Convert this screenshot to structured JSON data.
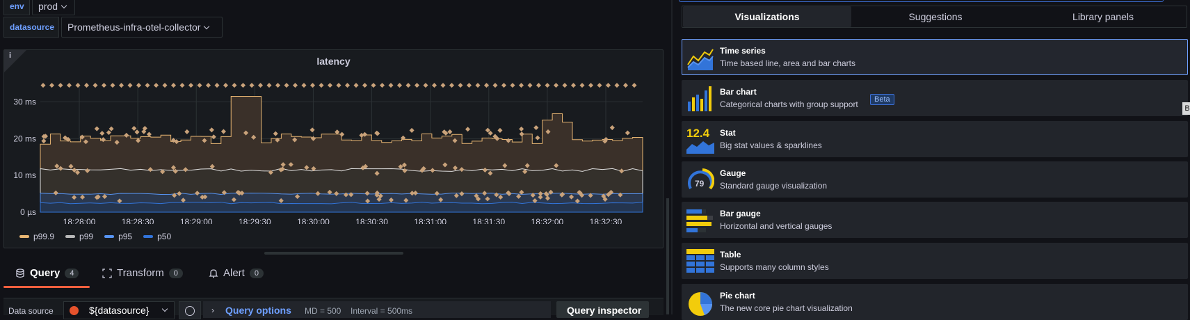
{
  "variables": {
    "env": {
      "label": "env",
      "value": "prod"
    },
    "datasource": {
      "label": "datasource",
      "value": "Prometheus-infra-otel-collector"
    }
  },
  "panel": {
    "title": "latency",
    "info_glyph": "i"
  },
  "chart_data": {
    "type": "line",
    "title": "latency",
    "x_ticks": [
      "18:28:00",
      "18:28:30",
      "18:29:00",
      "18:29:30",
      "18:30:00",
      "18:30:30",
      "18:31:00",
      "18:31:30",
      "18:32:00",
      "18:32:30"
    ],
    "y_ticks": [
      "0 µs",
      "10 ms",
      "20 ms",
      "30 ms"
    ],
    "ylim": [
      0,
      35
    ],
    "legend_position": "bottom-left",
    "series": [
      {
        "name": "p99.9",
        "color": "#e8b673",
        "approx_level_ms": 20,
        "scatter_level_ms": 34.5
      },
      {
        "name": "p99",
        "color": "#b9b9b9",
        "approx_level_ms": 11.5
      },
      {
        "name": "p95",
        "color": "#5794f2",
        "approx_level_ms": 5
      },
      {
        "name": "p50",
        "color": "#3274d9",
        "approx_level_ms": 2.5
      }
    ]
  },
  "query_tabs": [
    {
      "label": "Query",
      "count": "4"
    },
    {
      "label": "Transform",
      "count": "0"
    },
    {
      "label": "Alert",
      "count": "0"
    }
  ],
  "query_row": {
    "datasource_label": "Data source",
    "datasource_value": "${datasource}",
    "options_label": "Query options",
    "md": "MD = 500",
    "interval": "Interval = 500ms",
    "inspector": "Query inspector"
  },
  "viz_tabs": [
    {
      "label": "Visualizations"
    },
    {
      "label": "Suggestions"
    },
    {
      "label": "Library panels"
    }
  ],
  "viz_cards": [
    {
      "title": "Time series",
      "desc": "Time based line, area and bar charts",
      "icon": "time-series-icon"
    },
    {
      "title": "Bar chart",
      "desc": "Categorical charts with group support",
      "icon": "bar-chart-icon",
      "badge": "Beta"
    },
    {
      "title": "Stat",
      "desc": "Big stat values & sparklines",
      "icon": "stat-icon",
      "icon_text": "12.4"
    },
    {
      "title": "Gauge",
      "desc": "Standard gauge visualization",
      "icon": "gauge-icon",
      "icon_text": "79"
    },
    {
      "title": "Bar gauge",
      "desc": "Horizontal and vertical gauges",
      "icon": "bar-gauge-icon"
    },
    {
      "title": "Table",
      "desc": "Supports many column styles",
      "icon": "table-icon"
    },
    {
      "title": "Pie chart",
      "desc": "The new core pie chart visualization",
      "icon": "pie-chart-icon"
    }
  ],
  "tooltip_stub": "B",
  "colors": {
    "accent": "#6e9fff",
    "active_tab": "#f55f3e",
    "series_orange": "#e8b673"
  }
}
